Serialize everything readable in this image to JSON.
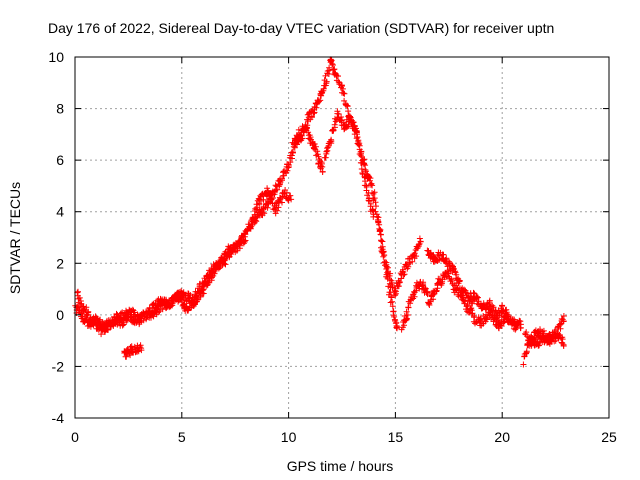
{
  "chart_data": {
    "type": "scatter",
    "title": "Day 176 of 2022, Sidereal Day-to-day VTEC variation (SDTVAR) for receiver uptn",
    "xlabel": "GPS time / hours",
    "ylabel": "SDTVAR / TECUs",
    "xlim": [
      0,
      25
    ],
    "ylim": [
      -4,
      10
    ],
    "xticks": [
      0,
      5,
      10,
      15,
      20,
      25
    ],
    "yticks": [
      -4,
      -2,
      0,
      2,
      4,
      6,
      8,
      10
    ],
    "grid": true,
    "marker": "+",
    "series": [
      {
        "name": "SDTVAR",
        "color": "#ff0000",
        "tracks": [
          {
            "x": [
              0.0,
              0.3,
              0.6,
              1.0,
              1.4,
              1.8,
              2.2,
              2.6,
              3.0,
              3.3,
              3.7,
              4.0,
              4.4,
              4.8,
              5.2,
              5.6,
              6.0,
              6.4,
              6.8,
              7.2,
              7.6,
              8.0,
              8.4,
              8.8,
              9.2,
              9.6,
              10.0,
              10.3,
              10.6,
              10.9,
              11.2,
              11.5,
              11.8,
              12.0,
              12.2,
              12.5,
              12.8,
              13.1,
              13.4,
              13.7,
              14.0,
              14.2,
              14.4,
              14.6,
              14.8,
              15.0,
              15.1
            ],
            "y": [
              0.3,
              0.0,
              -0.4,
              -0.2,
              -0.5,
              -0.2,
              -0.3,
              0.1,
              -0.2,
              0.0,
              0.3,
              0.5,
              0.4,
              0.7,
              0.3,
              0.5,
              1.0,
              1.5,
              2.0,
              2.6,
              2.6,
              3.2,
              3.7,
              4.0,
              4.6,
              5.2,
              5.8,
              6.6,
              6.9,
              7.6,
              7.9,
              8.6,
              9.2,
              9.8,
              9.3,
              8.8,
              7.8,
              7.2,
              6.3,
              5.4,
              4.6,
              3.6,
              2.6,
              1.5,
              0.5,
              -0.3,
              -0.6
            ]
          },
          {
            "x": [
              0.1,
              0.4,
              0.8,
              1.2,
              1.6,
              2.0,
              2.4,
              2.8,
              3.2
            ],
            "y": [
              0.8,
              0.3,
              -0.2,
              -0.6,
              -0.4,
              -0.1,
              0.0,
              -0.2,
              -0.1
            ]
          },
          {
            "x": [
              2.3,
              2.6,
              2.9,
              3.1
            ],
            "y": [
              -1.5,
              -1.4,
              -1.3,
              -1.2
            ]
          },
          {
            "x": [
              3.5,
              4.0,
              4.5,
              5.0,
              5.5,
              6.0,
              6.5,
              7.0,
              7.5,
              8.0
            ],
            "y": [
              0.0,
              0.3,
              0.5,
              0.8,
              0.6,
              1.2,
              1.8,
              2.1,
              2.7,
              3.0
            ]
          },
          {
            "x": [
              8.2,
              8.6,
              9.0,
              9.4,
              9.8,
              10.1
            ],
            "y": [
              3.4,
              4.4,
              4.8,
              4.1,
              4.7,
              4.5
            ]
          },
          {
            "x": [
              10.2,
              10.5,
              10.8,
              11.0,
              11.2,
              11.4,
              11.5,
              11.6
            ],
            "y": [
              6.6,
              7.0,
              7.3,
              6.8,
              6.5,
              6.0,
              5.8,
              5.6
            ]
          },
          {
            "x": [
              11.7,
              12.0,
              12.3,
              12.6,
              12.9,
              13.2,
              13.5,
              13.8,
              14.0
            ],
            "y": [
              6.0,
              6.9,
              7.8,
              7.3,
              7.6,
              7.0,
              5.5,
              4.4,
              3.8
            ]
          },
          {
            "x": [
              14.2,
              14.4,
              14.6,
              14.8,
              15.0
            ],
            "y": [
              3.5,
              2.5,
              1.8,
              1.2,
              0.8
            ]
          },
          {
            "x": [
              15.0,
              15.3,
              15.6,
              15.9,
              16.2
            ],
            "y": [
              0.9,
              1.5,
              2.0,
              2.3,
              2.9
            ]
          },
          {
            "x": [
              15.3,
              15.5,
              15.7,
              16.0,
              16.3,
              16.6,
              17.0,
              17.4,
              17.8,
              18.2,
              18.5
            ],
            "y": [
              -0.4,
              -0.1,
              0.5,
              1.1,
              1.2,
              0.5,
              1.2,
              1.6,
              1.0,
              0.5,
              0.1
            ]
          },
          {
            "x": [
              16.5,
              16.8,
              17.1,
              17.4,
              17.7,
              18.0,
              18.3,
              18.6
            ],
            "y": [
              2.4,
              2.2,
              2.3,
              2.1,
              1.7,
              1.2,
              0.8,
              0.3
            ]
          },
          {
            "x": [
              18.5,
              18.8,
              19.1,
              19.4,
              19.7,
              20.0,
              20.3,
              20.6,
              20.9
            ],
            "y": [
              0.8,
              0.6,
              0.3,
              0.4,
              0.0,
              0.2,
              -0.1,
              -0.4,
              -0.4
            ]
          },
          {
            "x": [
              18.6,
              19.0,
              19.4,
              19.8,
              20.2,
              20.6
            ],
            "y": [
              -0.1,
              -0.3,
              0.1,
              -0.4,
              -0.1,
              -0.5
            ]
          },
          {
            "x": [
              21.0,
              21.2,
              21.4,
              21.7,
              22.0,
              22.3,
              22.6,
              22.9
            ],
            "y": [
              -1.8,
              -1.2,
              -0.9,
              -0.7,
              -0.8,
              -1.0,
              -0.8,
              -1.1
            ]
          },
          {
            "x": [
              21.1,
              21.4,
              21.8,
              22.2,
              22.6,
              22.9
            ],
            "y": [
              -0.7,
              -1.1,
              -1.0,
              -0.9,
              -0.6,
              -0.1
            ]
          }
        ]
      }
    ]
  }
}
